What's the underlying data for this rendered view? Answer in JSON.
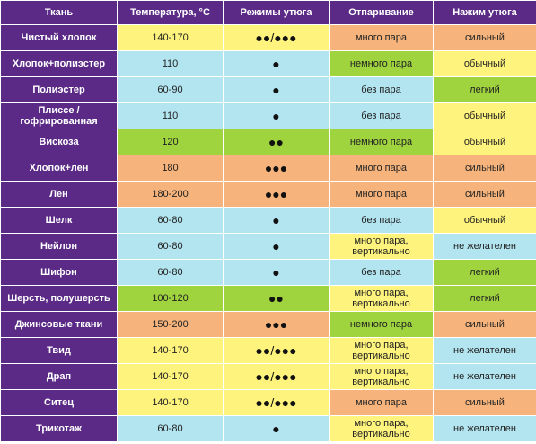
{
  "headers": [
    "Ткань",
    "Температура, °С",
    "Режимы утюга",
    "Отпаривание",
    "Нажим утюга"
  ],
  "colors": {
    "header_bg": "#5b2a86",
    "yellow": "#fdf37d",
    "cyan": "#b3e5f0",
    "orange": "#f6b47c",
    "green": "#9fd43f"
  },
  "rows": [
    {
      "fabric": "Чистый хлопок",
      "temp": "140-170",
      "temp_color": "yellow",
      "modes": "●●/●●●",
      "modes_color": "yellow",
      "steam": "много пара",
      "steam_color": "orange",
      "press": "сильный",
      "press_color": "orange"
    },
    {
      "fabric": "Хлопок+полиэстер",
      "temp": "110",
      "temp_color": "cyan",
      "modes": "●",
      "modes_color": "cyan",
      "steam": "немного пара",
      "steam_color": "green",
      "press": "обычный",
      "press_color": "yellow"
    },
    {
      "fabric": "Полиэстер",
      "temp": "60-90",
      "temp_color": "cyan",
      "modes": "●",
      "modes_color": "cyan",
      "steam": "без пара",
      "steam_color": "cyan",
      "press": "легкий",
      "press_color": "green"
    },
    {
      "fabric": "Плиссе / гофрированная",
      "temp": "110",
      "temp_color": "cyan",
      "modes": "●",
      "modes_color": "cyan",
      "steam": "без пара",
      "steam_color": "cyan",
      "press": "обычный",
      "press_color": "yellow"
    },
    {
      "fabric": "Вискоза",
      "temp": "120",
      "temp_color": "green",
      "modes": "●●",
      "modes_color": "green",
      "steam": "немного пара",
      "steam_color": "green",
      "press": "обычный",
      "press_color": "yellow"
    },
    {
      "fabric": "Хлопок+лен",
      "temp": "180",
      "temp_color": "orange",
      "modes": "●●●",
      "modes_color": "orange",
      "steam": "много пара",
      "steam_color": "orange",
      "press": "сильный",
      "press_color": "orange"
    },
    {
      "fabric": "Лен",
      "temp": "180-200",
      "temp_color": "orange",
      "modes": "●●●",
      "modes_color": "orange",
      "steam": "много пара",
      "steam_color": "orange",
      "press": "сильный",
      "press_color": "orange"
    },
    {
      "fabric": "Шелк",
      "temp": "60-80",
      "temp_color": "cyan",
      "modes": "●",
      "modes_color": "cyan",
      "steam": "без пара",
      "steam_color": "cyan",
      "press": "обычный",
      "press_color": "yellow"
    },
    {
      "fabric": "Нейлон",
      "temp": "60-80",
      "temp_color": "cyan",
      "modes": "●",
      "modes_color": "cyan",
      "steam": "много пара, вертикально",
      "steam_color": "yellow",
      "press": "не желателен",
      "press_color": "cyan"
    },
    {
      "fabric": "Шифон",
      "temp": "60-80",
      "temp_color": "cyan",
      "modes": "●",
      "modes_color": "cyan",
      "steam": "без пара",
      "steam_color": "cyan",
      "press": "легкий",
      "press_color": "green"
    },
    {
      "fabric": "Шерсть, полушерсть",
      "temp": "100-120",
      "temp_color": "green",
      "modes": "●●",
      "modes_color": "green",
      "steam": "много пара, вертикально",
      "steam_color": "yellow",
      "press": "легкий",
      "press_color": "green"
    },
    {
      "fabric": "Джинсовые ткани",
      "temp": "150-200",
      "temp_color": "orange",
      "modes": "●●●",
      "modes_color": "orange",
      "steam": "немного пара",
      "steam_color": "green",
      "press": "сильный",
      "press_color": "orange"
    },
    {
      "fabric": "Твид",
      "temp": "140-170",
      "temp_color": "yellow",
      "modes": "●●/●●●",
      "modes_color": "yellow",
      "steam": "много пара, вертикально",
      "steam_color": "yellow",
      "press": "не желателен",
      "press_color": "cyan"
    },
    {
      "fabric": "Драп",
      "temp": "140-170",
      "temp_color": "yellow",
      "modes": "●●/●●●",
      "modes_color": "yellow",
      "steam": "много пара, вертикально",
      "steam_color": "yellow",
      "press": "не желателен",
      "press_color": "cyan"
    },
    {
      "fabric": "Ситец",
      "temp": "140-170",
      "temp_color": "yellow",
      "modes": "●●/●●●",
      "modes_color": "yellow",
      "steam": "много пара",
      "steam_color": "orange",
      "press": "сильный",
      "press_color": "orange"
    },
    {
      "fabric": "Трикотаж",
      "temp": "60-80",
      "temp_color": "cyan",
      "modes": "●",
      "modes_color": "cyan",
      "steam": "много пара, вертикально",
      "steam_color": "yellow",
      "press": "не желателен",
      "press_color": "cyan"
    }
  ]
}
